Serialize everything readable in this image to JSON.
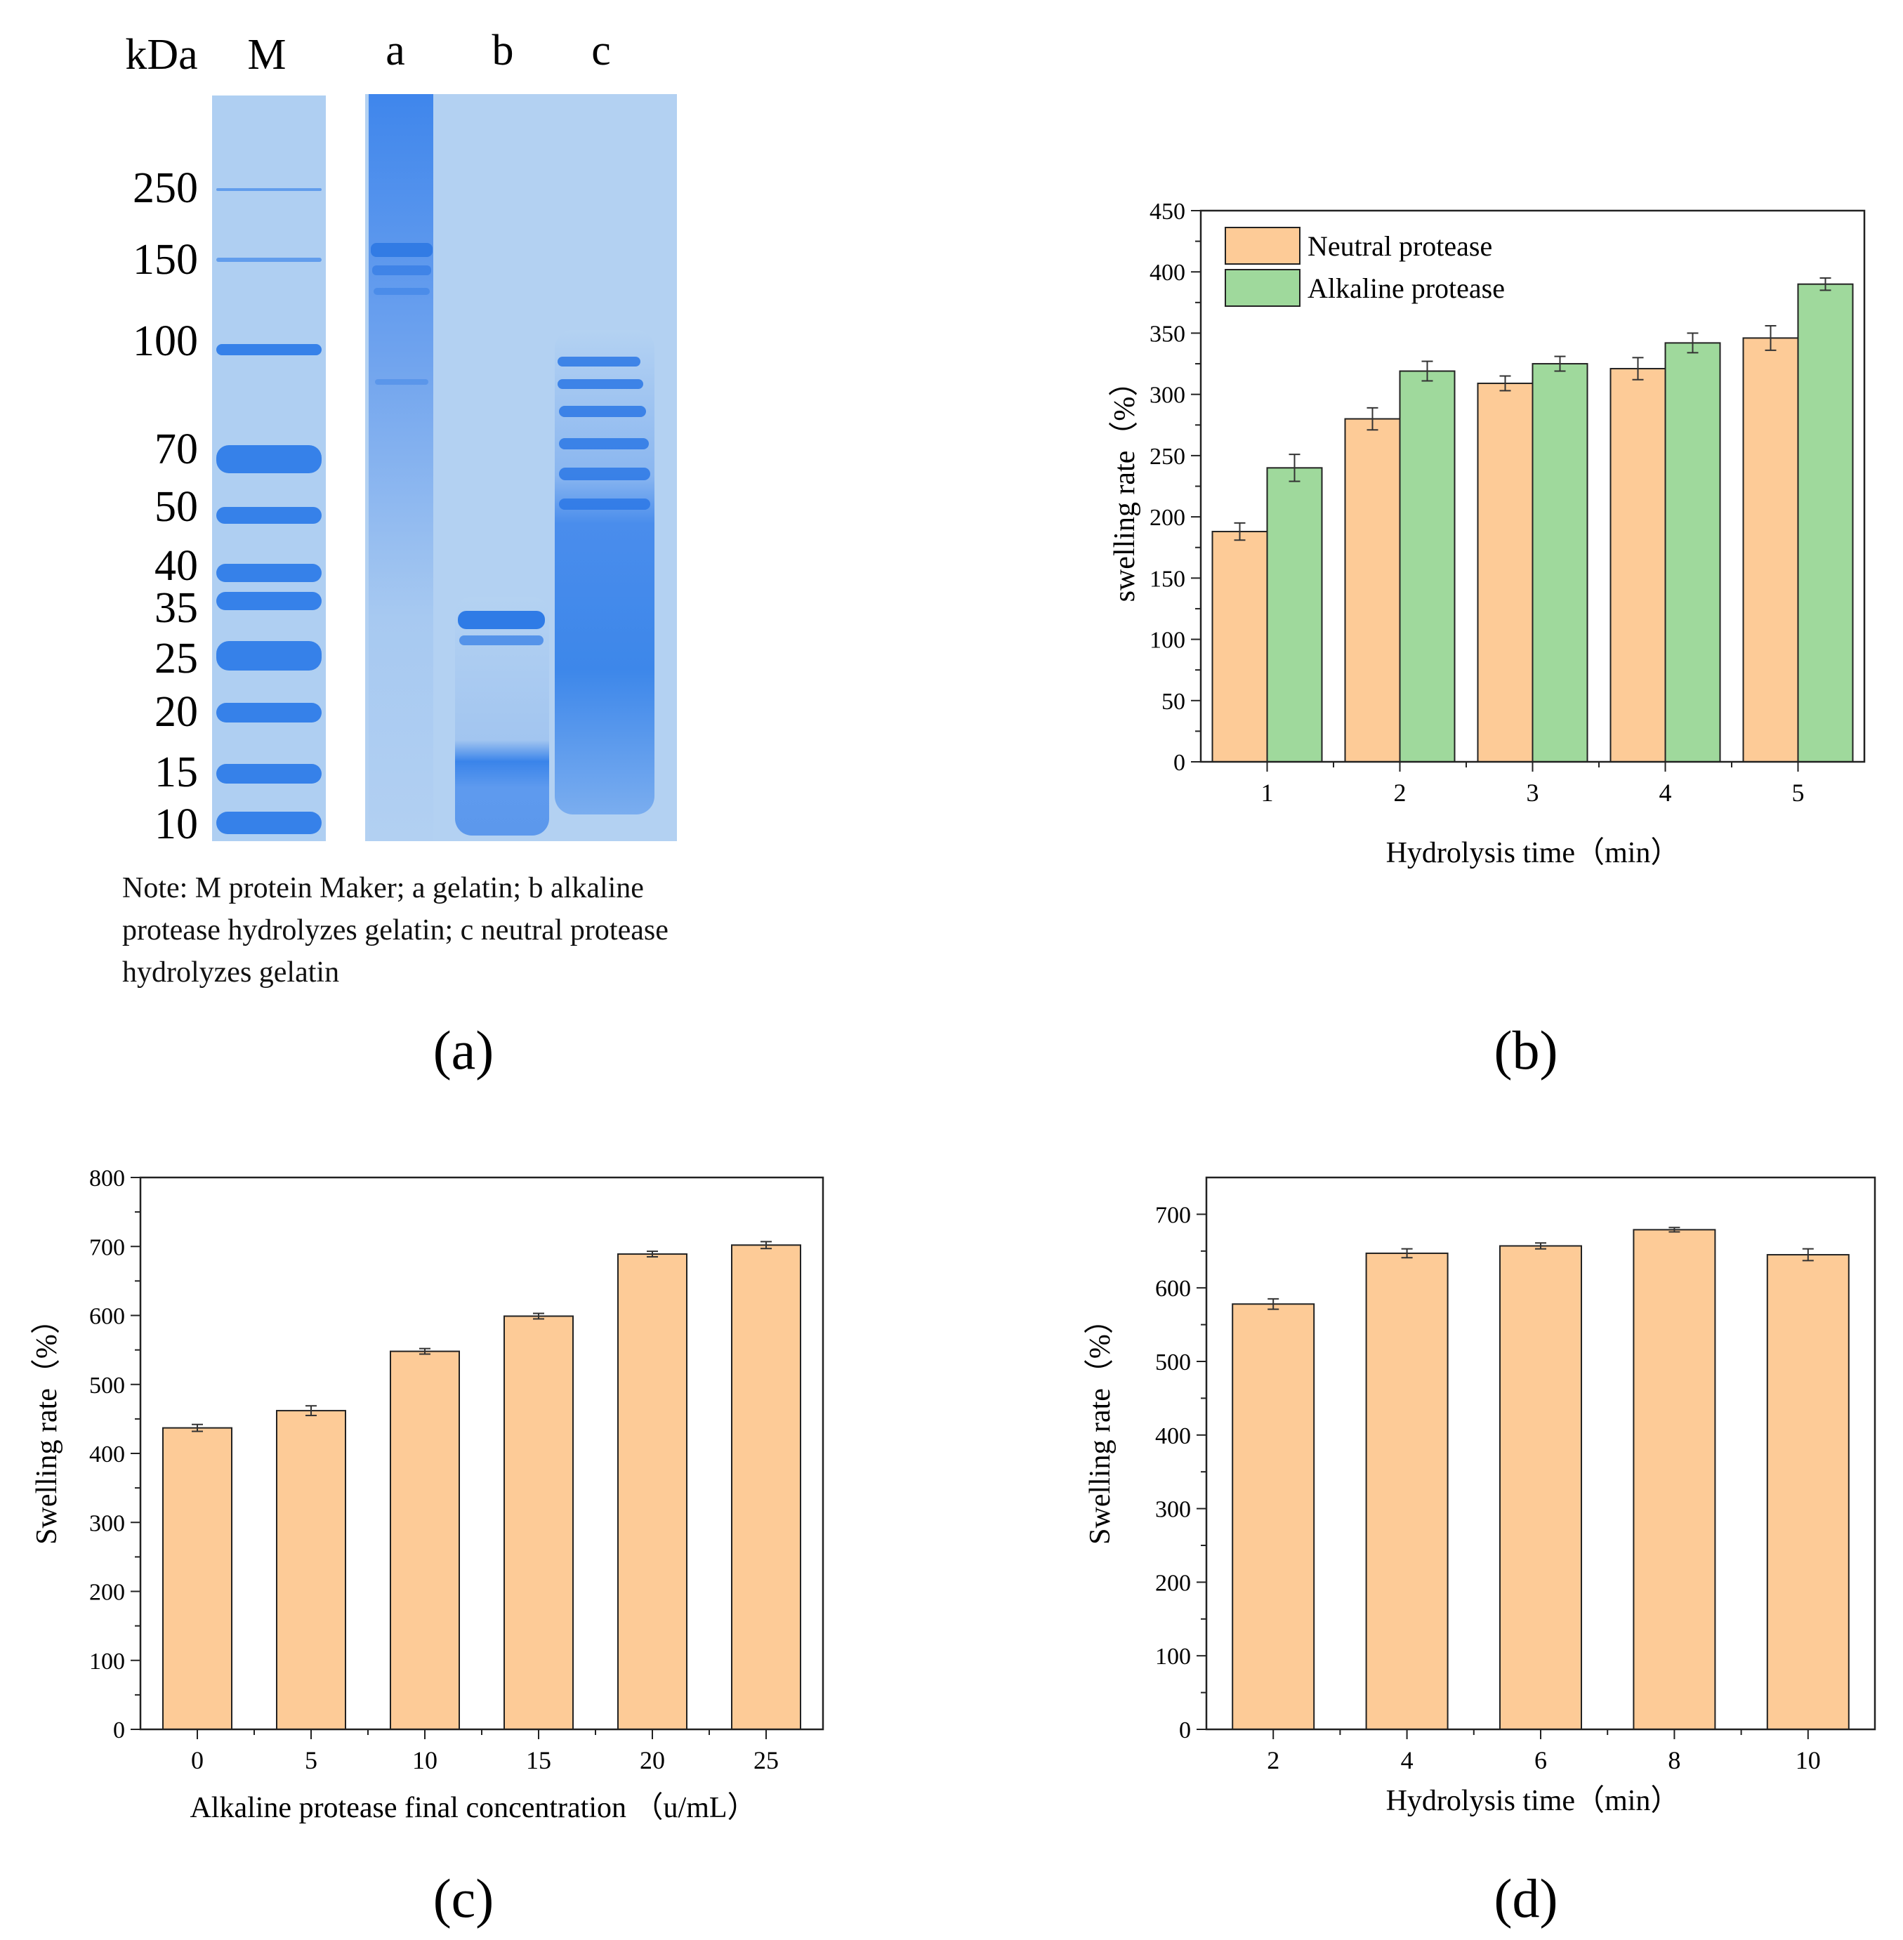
{
  "gel": {
    "unit": "kDa",
    "lanes": [
      "M",
      "a",
      "b",
      "c"
    ],
    "marker_sizes": [
      "250",
      "150",
      "100",
      "70",
      "50",
      "40",
      "35",
      "25",
      "20",
      "15",
      "10"
    ],
    "note_lines": [
      "Note: M protein Maker; a gelatin; b alkaline",
      "protease hydrolyzes gelatin; c neutral protease",
      "hydrolyzes gelatin"
    ],
    "panel_label": "(a)"
  },
  "colors": {
    "neutral": "#FDCB97",
    "alkaline": "#9FD99C",
    "gel_bg": "#AFCFF2",
    "band": "#2F7CE8"
  },
  "chart_data": [
    {
      "id": "b",
      "type": "bar",
      "panel_label": "(b)",
      "xlabel": "Hydrolysis time（min）",
      "ylabel": "swelling rate（%）",
      "ylim": [
        0,
        450
      ],
      "yticks": [
        "0",
        "50",
        "100",
        "150",
        "200",
        "250",
        "300",
        "350",
        "400",
        "450"
      ],
      "categories": [
        "1",
        "2",
        "3",
        "4",
        "5"
      ],
      "series": [
        {
          "name": "Neutral protease",
          "values": [
            188,
            280,
            309,
            321,
            346
          ],
          "errors": [
            7,
            9,
            6,
            9,
            10
          ]
        },
        {
          "name": "Alkaline protease",
          "values": [
            240,
            319,
            325,
            342,
            390
          ],
          "errors": [
            11,
            8,
            6,
            8,
            5
          ]
        }
      ],
      "legend": "top-left"
    },
    {
      "id": "c",
      "type": "bar",
      "panel_label": "(c)",
      "xlabel": "Alkaline protease final concentration （u/mL）",
      "ylabel": "Swelling rate（%）",
      "ylim": [
        0,
        800
      ],
      "yticks": [
        "0",
        "100",
        "200",
        "300",
        "400",
        "500",
        "600",
        "700",
        "800"
      ],
      "categories": [
        "0",
        "5",
        "10",
        "15",
        "20",
        "25"
      ],
      "series": [
        {
          "name": "",
          "values": [
            437,
            462,
            548,
            599,
            689,
            702
          ],
          "errors": [
            5,
            7,
            4,
            4,
            4,
            5
          ]
        }
      ]
    },
    {
      "id": "d",
      "type": "bar",
      "panel_label": "(d)",
      "xlabel": "Hydrolysis time（min）",
      "ylabel": "Swelling rate（%）",
      "ylim": [
        0,
        750
      ],
      "yticks": [
        "0",
        "100",
        "200",
        "300",
        "400",
        "500",
        "600",
        "700"
      ],
      "categories": [
        "2",
        "4",
        "6",
        "8",
        "10"
      ],
      "series": [
        {
          "name": "",
          "values": [
            578,
            647,
            657,
            679,
            645
          ],
          "errors": [
            7,
            6,
            4,
            3,
            8
          ]
        }
      ]
    }
  ]
}
